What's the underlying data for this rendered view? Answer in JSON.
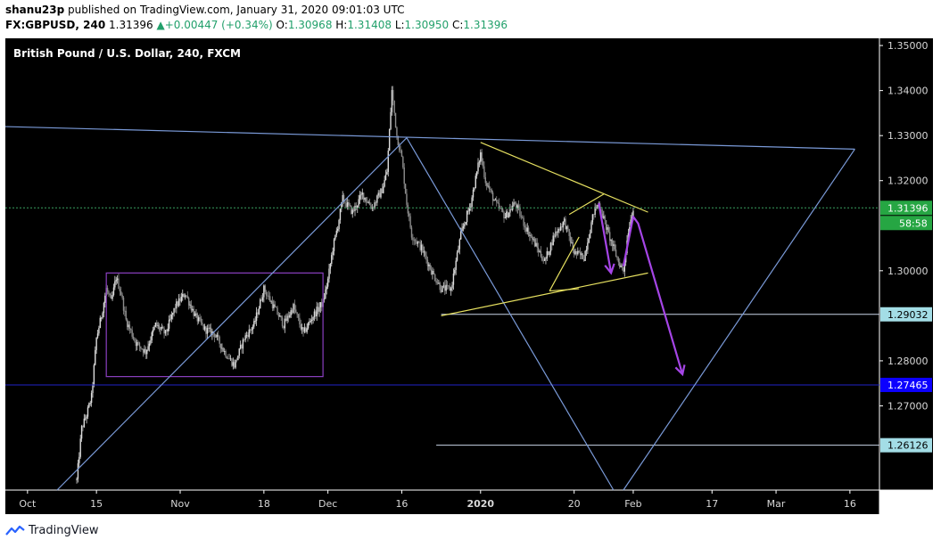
{
  "header": {
    "author": "shanu23p",
    "published": "published on TradingView.com, January 31, 2020 09:01:03 UTC"
  },
  "quote": {
    "symbol": "FX:GBPUSD, 240",
    "last": "1.31396",
    "change": "+0.00447 (+0.34%)",
    "o_label": "O:",
    "o": "1.30968",
    "h_label": "H:",
    "h": "1.31408",
    "l_label": "L:",
    "l": "1.30950",
    "c_label": "C:",
    "c": "1.31396"
  },
  "footer": {
    "brand": "TradingView",
    "logo_icon": "tradingview-logo-icon"
  },
  "chart_data": {
    "type": "candlestick",
    "title": "British Pound / U.S. Dollar, 240, FXCM",
    "ylim": [
      1.2513,
      1.3516
    ],
    "grid": false,
    "background": "#000000",
    "y_ticks": [
      {
        "value": 1.35,
        "label": "1.35000"
      },
      {
        "value": 1.34,
        "label": "1.34000"
      },
      {
        "value": 1.33,
        "label": "1.33000"
      },
      {
        "value": 1.32,
        "label": "1.32000"
      },
      {
        "value": 1.3,
        "label": "1.30000"
      },
      {
        "value": 1.28,
        "label": "1.28000"
      },
      {
        "value": 1.27,
        "label": "1.27000"
      }
    ],
    "x_ticks": [
      {
        "day": 0,
        "label": "Oct"
      },
      {
        "day": 14,
        "label": "15"
      },
      {
        "day": 31,
        "label": "Nov"
      },
      {
        "day": 48,
        "label": "18"
      },
      {
        "day": 61,
        "label": "Dec"
      },
      {
        "day": 76,
        "label": "16"
      },
      {
        "day": 92,
        "label": "2020"
      },
      {
        "day": 111,
        "label": "20"
      },
      {
        "day": 123,
        "label": "Feb"
      },
      {
        "day": 139,
        "label": "17"
      },
      {
        "day": 152,
        "label": "Mar"
      },
      {
        "day": 167,
        "label": "16"
      }
    ],
    "x_range": [
      -4.5,
      173
    ],
    "last_day": 123,
    "price_path": [
      [
        10,
        1.2535
      ],
      [
        11,
        1.265
      ],
      [
        12,
        1.268
      ],
      [
        13,
        1.272
      ],
      [
        14,
        1.285
      ],
      [
        15,
        1.29
      ],
      [
        16,
        1.296
      ],
      [
        17,
        1.293
      ],
      [
        18,
        1.2985
      ],
      [
        19,
        1.295
      ],
      [
        20,
        1.289
      ],
      [
        22,
        1.284
      ],
      [
        24,
        1.282
      ],
      [
        26,
        1.288
      ],
      [
        28,
        1.286
      ],
      [
        30,
        1.292
      ],
      [
        32,
        1.295
      ],
      [
        34,
        1.29
      ],
      [
        36,
        1.287
      ],
      [
        38,
        1.286
      ],
      [
        40,
        1.282
      ],
      [
        42,
        1.279
      ],
      [
        44,
        1.285
      ],
      [
        46,
        1.288
      ],
      [
        48,
        1.296
      ],
      [
        50,
        1.292
      ],
      [
        52,
        1.288
      ],
      [
        54,
        1.292
      ],
      [
        56,
        1.286
      ],
      [
        58,
        1.29
      ],
      [
        60,
        1.293
      ],
      [
        61,
        1.298
      ],
      [
        62,
        1.305
      ],
      [
        63,
        1.31
      ],
      [
        64,
        1.316
      ],
      [
        66,
        1.313
      ],
      [
        68,
        1.317
      ],
      [
        70,
        1.314
      ],
      [
        72,
        1.318
      ],
      [
        73,
        1.322
      ],
      [
        74,
        1.34
      ],
      [
        75,
        1.33
      ],
      [
        76,
        1.325
      ],
      [
        77,
        1.315
      ],
      [
        78,
        1.308
      ],
      [
        80,
        1.305
      ],
      [
        82,
        1.3
      ],
      [
        84,
        1.296
      ],
      [
        86,
        1.296
      ],
      [
        88,
        1.308
      ],
      [
        90,
        1.315
      ],
      [
        92,
        1.326
      ],
      [
        93,
        1.32
      ],
      [
        95,
        1.315
      ],
      [
        97,
        1.312
      ],
      [
        99,
        1.315
      ],
      [
        101,
        1.31
      ],
      [
        103,
        1.306
      ],
      [
        105,
        1.302
      ],
      [
        107,
        1.308
      ],
      [
        109,
        1.311
      ],
      [
        111,
        1.304
      ],
      [
        113,
        1.303
      ],
      [
        115,
        1.313
      ],
      [
        116,
        1.315
      ],
      [
        118,
        1.308
      ],
      [
        120,
        1.302
      ],
      [
        121,
        1.3
      ],
      [
        122,
        1.309
      ],
      [
        123,
        1.314
      ]
    ],
    "price_labels": [
      {
        "value": 1.31396,
        "label": "1.31396",
        "bg": "#26a643",
        "fg": "#ffffff",
        "countdown": "58:58"
      },
      {
        "value": 1.29032,
        "label": "1.29032",
        "bg": "#a3dde6",
        "fg": "#000000"
      },
      {
        "value": 1.27465,
        "label": "1.27465",
        "bg": "#0c00ff",
        "fg": "#ffffff"
      },
      {
        "value": 1.26126,
        "label": "1.26126",
        "bg": "#a3dde6",
        "fg": "#000000"
      }
    ],
    "drawings": {
      "trend_lines": [
        {
          "color": "#7a9ad8",
          "points": [
            [
              -4.5,
              1.332
            ],
            [
              168,
              1.327
            ]
          ]
        },
        {
          "color": "#7a9ad8",
          "points": [
            [
              6,
              1.2513
            ],
            [
              77,
              1.3295
            ]
          ]
        },
        {
          "color": "#7a9ad8",
          "points": [
            [
              77,
              1.3295
            ],
            [
              119,
              1.2513
            ]
          ]
        },
        {
          "color": "#7a9ad8",
          "points": [
            [
              121,
              1.2513
            ],
            [
              168,
              1.327
            ]
          ]
        },
        {
          "color": "#e6e060",
          "points": [
            [
              92,
              1.3285
            ],
            [
              126,
              1.313
            ]
          ]
        },
        {
          "color": "#e6e060",
          "points": [
            [
              84,
              1.29
            ],
            [
              126,
              1.2995
            ]
          ]
        },
        {
          "color": "#e6e060",
          "points": [
            [
              106,
              1.2955
            ],
            [
              112,
              1.3075
            ]
          ]
        },
        {
          "color": "#e6e060",
          "points": [
            [
              106,
              1.2955
            ],
            [
              112,
              1.296
            ]
          ]
        },
        {
          "color": "#e6e060",
          "points": [
            [
              110,
              1.3125
            ],
            [
              117,
              1.317
            ]
          ]
        }
      ],
      "horizontal_lines": [
        {
          "value": 1.29032,
          "from": 84,
          "color": "#c9d6e8"
        },
        {
          "value": 1.27465,
          "from": -4.5,
          "color": "#1f25c8"
        },
        {
          "value": 1.26126,
          "from": 83,
          "color": "#c9d6e8"
        },
        {
          "value": 1.31396,
          "from": -4.5,
          "color": "#3aa060",
          "dashed": true
        }
      ],
      "rectangles": [
        {
          "color": "#8a3fc0",
          "x1": 16,
          "x2": 60,
          "y1": 1.2765,
          "y2": 1.2995
        }
      ],
      "arrows": [
        {
          "color": "#a545e6",
          "points": [
            [
              116,
              1.315
            ],
            [
              118.5,
              1.2995
            ]
          ]
        },
        {
          "color": "#a545e6",
          "points": [
            [
              121,
              1.301
            ],
            [
              123,
              1.312
            ],
            [
              124,
              1.3105
            ],
            [
              133,
              1.277
            ]
          ]
        }
      ]
    }
  }
}
